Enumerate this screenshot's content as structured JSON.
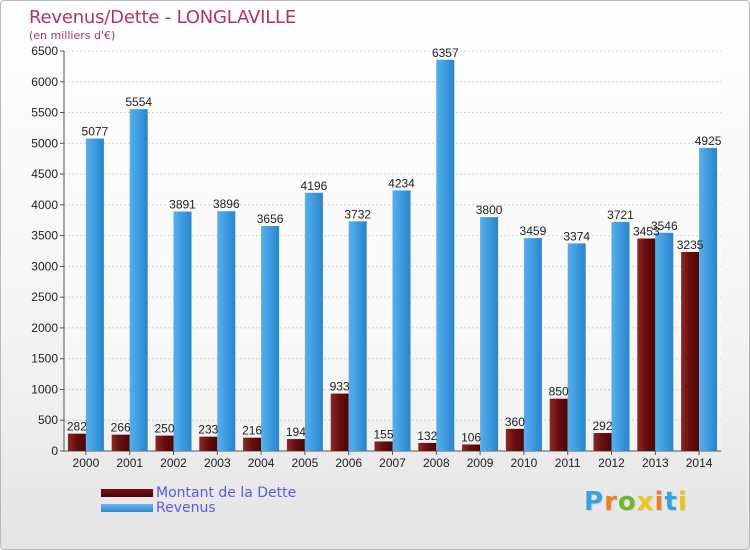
{
  "title": "Revenus/Dette - LONGLAVILLE",
  "subtitle": "(en milliers d'€)",
  "legend": {
    "debt_label": "Montant de la Dette",
    "revenue_label": "Revenus"
  },
  "brand": {
    "text": "Proxiti",
    "letter_colors": [
      "#3aa1e0",
      "#f07e22",
      "#6cba2c",
      "#e8c81e",
      "#f07e22",
      "#3aa1e0",
      "#e8c81e"
    ]
  },
  "colors": {
    "debt": "#6b0f0f",
    "revenue": "#3c9be0",
    "title": "#b5306a",
    "legend_text": "#5a5ae8"
  },
  "chart_data": {
    "type": "bar",
    "categories": [
      "2000",
      "2001",
      "2002",
      "2003",
      "2004",
      "2005",
      "2006",
      "2007",
      "2008",
      "2009",
      "2010",
      "2011",
      "2012",
      "2013",
      "2014"
    ],
    "series": [
      {
        "name": "Montant de la Dette",
        "values": [
          282,
          266,
          250,
          233,
          216,
          194,
          933,
          155,
          132,
          106,
          360,
          850,
          292,
          3453,
          3235
        ],
        "labels": [
          "282",
          "266",
          "250",
          "233",
          "216",
          "194",
          "933",
          "155",
          "132",
          "106",
          "360",
          "850",
          "292",
          "3453",
          "3235"
        ]
      },
      {
        "name": "Revenus",
        "values": [
          5077,
          5554,
          3891,
          3896,
          3656,
          4196,
          3732,
          4234,
          6357,
          3800,
          3459,
          3374,
          3721,
          3546,
          4925
        ],
        "labels": [
          "5077",
          "5554",
          "3891",
          "3896",
          "3656",
          "4196",
          "3732",
          "4234",
          "6357",
          "3800",
          "3459",
          "3374",
          "3721",
          "3546",
          "4925"
        ]
      }
    ],
    "ylim": [
      0,
      6500
    ],
    "yticks": [
      0,
      500,
      1000,
      1500,
      2000,
      2500,
      3000,
      3500,
      4000,
      4500,
      5000,
      5500,
      6000,
      6500
    ],
    "grid": true,
    "legend_position": "bottom-left"
  }
}
